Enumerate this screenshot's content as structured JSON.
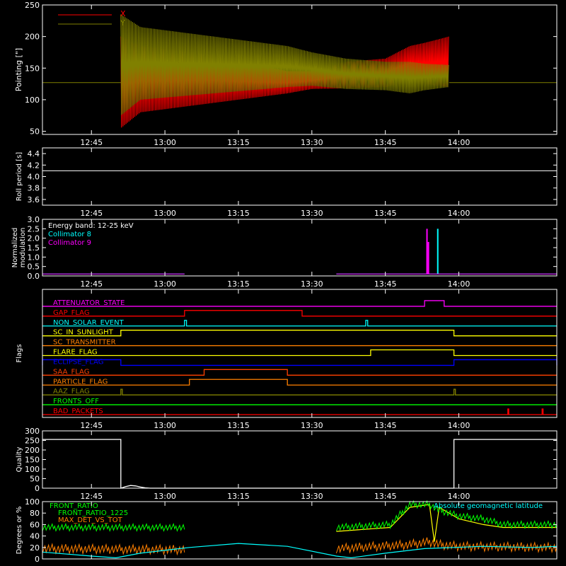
{
  "x_axis": {
    "start_min": 755,
    "end_min": 860,
    "tick_minutes": [
      765,
      780,
      795,
      810,
      825,
      840
    ],
    "tick_labels": [
      "12:45",
      "13:00",
      "13:15",
      "13:30",
      "13:45",
      "14:00"
    ]
  },
  "chart_data": [
    {
      "id": "pointing",
      "type": "line",
      "ylabel": "Pointing [\"]",
      "ylim": [
        45,
        250
      ],
      "yticks": [
        50,
        100,
        150,
        200,
        250
      ],
      "baseline": 127,
      "active_range": [
        771,
        815,
        830,
        838
      ],
      "series": [
        {
          "name": "X",
          "color": "#ff0000",
          "envelope_lower": [
            [
              771,
              55
            ],
            [
              775,
              80
            ],
            [
              790,
              95
            ],
            [
              805,
              110
            ],
            [
              810,
              117
            ],
            [
              817,
              118
            ],
            [
              825,
              120
            ],
            [
              830,
              128
            ],
            [
              833,
              125
            ],
            [
              838,
              120
            ]
          ],
          "envelope_upper": [
            [
              771,
              200
            ],
            [
              775,
              185
            ],
            [
              790,
              170
            ],
            [
              805,
              145
            ],
            [
              810,
              145
            ],
            [
              817,
              160
            ],
            [
              825,
              165
            ],
            [
              830,
              185
            ],
            [
              833,
              190
            ],
            [
              838,
              200
            ]
          ]
        },
        {
          "name": "Y",
          "color": "#808000",
          "envelope_lower": [
            [
              771,
              75
            ],
            [
              775,
              100
            ],
            [
              790,
              110
            ],
            [
              805,
              120
            ],
            [
              810,
              122
            ],
            [
              817,
              117
            ],
            [
              825,
              115
            ],
            [
              830,
              110
            ],
            [
              833,
              115
            ],
            [
              838,
              120
            ]
          ],
          "envelope_upper": [
            [
              771,
              235
            ],
            [
              775,
              215
            ],
            [
              790,
              200
            ],
            [
              805,
              185
            ],
            [
              810,
              175
            ],
            [
              817,
              165
            ],
            [
              825,
              160
            ],
            [
              830,
              160
            ],
            [
              833,
              157
            ],
            [
              838,
              155
            ]
          ]
        }
      ]
    },
    {
      "id": "roll",
      "type": "line",
      "ylabel": "Roll period [s]",
      "ylim": [
        3.5,
        4.5
      ],
      "yticks": [
        3.6,
        3.8,
        4.0,
        4.2,
        4.4
      ],
      "series": [
        {
          "name": "",
          "color": "#ffffff",
          "values": [
            [
              755,
              4.1
            ],
            [
              860,
              4.1
            ]
          ]
        }
      ]
    },
    {
      "id": "modulation",
      "type": "line",
      "ylabel": "Normalized modulation",
      "ylim": [
        0,
        3.0
      ],
      "yticks": [
        0.0,
        0.5,
        1.0,
        1.5,
        2.0,
        2.5,
        3.0
      ],
      "annotation": "Energy band: 12-25 keV",
      "series": [
        {
          "name": "Collimator 8",
          "color": "#00ffff",
          "segments": [
            [
              [
                755,
                0.1
              ],
              [
                784,
                0.1
              ]
            ],
            [
              [
                815,
                0.1
              ],
              [
                860,
                0.1
              ]
            ]
          ],
          "spikes": [
            [
              835.7,
              2.5
            ]
          ]
        },
        {
          "name": "Collimator 9",
          "color": "#ff00ff",
          "segments": [
            [
              [
                755,
                0.1
              ],
              [
                784,
                0.1
              ]
            ],
            [
              [
                815,
                0.1
              ],
              [
                860,
                0.1
              ]
            ]
          ],
          "spikes": [
            [
              833.5,
              2.5
            ],
            [
              833.8,
              1.8
            ]
          ]
        }
      ]
    },
    {
      "id": "flags",
      "type": "line",
      "ylabel": "Flags",
      "series": [
        {
          "name": "ATTENUATOR_STATE",
          "color": "#ff00ff",
          "high": [
            [
              833,
              837
            ]
          ]
        },
        {
          "name": "GAP_FLAG",
          "color": "#ff0000",
          "high": [
            [
              784,
              808
            ]
          ]
        },
        {
          "name": "NON_SOLAR_EVENT",
          "color": "#00ffff",
          "high": [
            [
              784,
              784.4
            ],
            [
              821,
              821.4
            ]
          ]
        },
        {
          "name": "SC_IN_SUNLIGHT",
          "color": "#ffff00",
          "high": [
            [
              771,
              839
            ]
          ]
        },
        {
          "name": "SC_TRANSMITTER",
          "color": "#ff8000",
          "high": []
        },
        {
          "name": "FLARE_FLAG",
          "color": "#ffff00",
          "high": [
            [
              822,
              839
            ]
          ]
        },
        {
          "name": "ECLIPSE_FLAG",
          "color": "#0000ff",
          "high": [
            [
              755,
              771
            ],
            [
              839,
              860
            ]
          ],
          "inverted": true
        },
        {
          "name": "SAA_FLAG",
          "color": "#ff4000",
          "high": [
            [
              788,
              805
            ]
          ]
        },
        {
          "name": "PARTICLE_FLAG",
          "color": "#ff8000",
          "high": [
            [
              785,
              805
            ]
          ]
        },
        {
          "name": "AAZ_FLAG",
          "color": "#808000",
          "high": [
            [
              771,
              771.3
            ],
            [
              839,
              839.3
            ]
          ]
        },
        {
          "name": "FRONTS_OFF",
          "color": "#00ff00",
          "high": []
        },
        {
          "name": "BAD_PACKETS",
          "color": "#ff0000",
          "high": [
            [
              850,
              850.2
            ],
            [
              857,
              857.2
            ]
          ]
        }
      ]
    },
    {
      "id": "quality",
      "type": "area",
      "ylabel": "Quality",
      "ylim": [
        0,
        300
      ],
      "yticks": [
        0,
        50,
        100,
        150,
        200,
        250,
        300
      ],
      "series": [
        {
          "name": "",
          "color": "#ffffff",
          "values": [
            [
              755,
              255
            ],
            [
              771,
              255
            ],
            [
              771,
              0
            ],
            [
              772,
              8
            ],
            [
              773,
              14
            ],
            [
              774,
              12
            ],
            [
              775,
              6
            ],
            [
              776,
              2
            ],
            [
              777,
              0
            ],
            [
              839,
              0
            ],
            [
              839,
              255
            ],
            [
              860,
              255
            ]
          ]
        }
      ]
    },
    {
      "id": "ratios",
      "type": "line",
      "ylabel": "Degrees or %",
      "ylim": [
        0,
        100
      ],
      "yticks": [
        0,
        20,
        40,
        60,
        80,
        100
      ],
      "right_label": "Absolute geomagnetic latitude",
      "series": [
        {
          "name": "FRONT_RATIO",
          "color": "#ffff00",
          "values": [
            [
              815,
              48
            ],
            [
              826,
              55
            ],
            [
              830,
              90
            ],
            [
              834,
              95
            ],
            [
              835,
              30
            ],
            [
              836,
              90
            ],
            [
              840,
              70
            ],
            [
              845,
              60
            ],
            [
              849,
              55
            ],
            [
              860,
              55
            ]
          ]
        },
        {
          "name": "FRONT_RATIO_1225",
          "color": "#00ff00",
          "baseline_segments": [
            [
              [
                755,
                55
              ],
              [
                784,
                55
              ]
            ],
            [
              [
                815,
                55
              ],
              [
                826,
                60
              ],
              [
                830,
                95
              ],
              [
                834,
                95
              ],
              [
                836,
                85
              ],
              [
                840,
                75
              ],
              [
                845,
                70
              ],
              [
                849,
                60
              ],
              [
                860,
                60
              ]
            ]
          ]
        },
        {
          "name": "MAX_DET_VS_TOT",
          "color": "#ff8000",
          "baseline_segments": [
            [
              [
                755,
                18
              ],
              [
                784,
                16
              ]
            ],
            [
              [
                815,
                18
              ],
              [
                830,
                25
              ],
              [
                834,
                30
              ],
              [
                836,
                25
              ],
              [
                840,
                22
              ],
              [
                860,
                20
              ]
            ]
          ]
        },
        {
          "name": "Absolute geomagnetic latitude",
          "color": "#00ffff",
          "values": [
            [
              755,
              12
            ],
            [
              765,
              5
            ],
            [
              770,
              2
            ],
            [
              775,
              10
            ],
            [
              785,
              20
            ],
            [
              795,
              27
            ],
            [
              805,
              22
            ],
            [
              815,
              5
            ],
            [
              818,
              2
            ],
            [
              825,
              10
            ],
            [
              833,
              18
            ],
            [
              845,
              22
            ],
            [
              855,
              20
            ],
            [
              860,
              22
            ]
          ]
        }
      ]
    }
  ],
  "colors": {
    "axis": "#ffffff",
    "background": "#000000"
  }
}
